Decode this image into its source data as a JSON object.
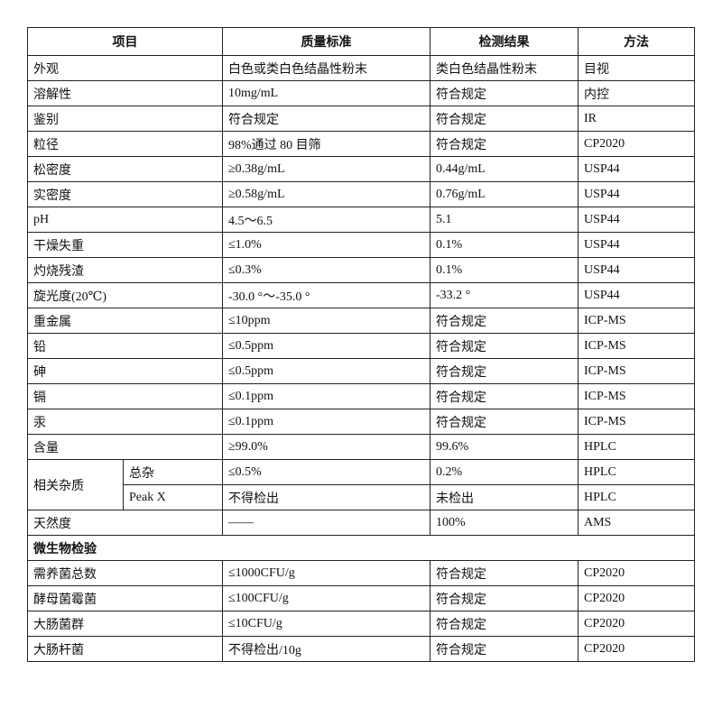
{
  "headers": [
    "项目",
    "质量标准",
    "检测结果",
    "方法"
  ],
  "rows": [
    [
      "外观",
      "白色或类白色结晶性粉末",
      "类白色结晶性粉末",
      "目视"
    ],
    [
      "溶解性",
      "10mg/mL",
      "符合规定",
      "内控"
    ],
    [
      "鉴别",
      "符合规定",
      "符合规定",
      "IR"
    ],
    [
      "粒径",
      "98%通过 80 目筛",
      "符合规定",
      "CP2020"
    ],
    [
      "松密度",
      "≥0.38g/mL",
      "0.44g/mL",
      "USP44"
    ],
    [
      "实密度",
      "≥0.58g/mL",
      "0.76g/mL",
      "USP44"
    ],
    [
      "pH",
      "4.5～6.5",
      "5.1",
      "USP44"
    ],
    [
      "干燥失重",
      "≤1.0%",
      "0.1%",
      "USP44"
    ],
    [
      "灼烧残渣",
      "≤0.3%",
      "0.1%",
      "USP44"
    ],
    [
      "旋光度(20℃)",
      "-30.0 °～-35.0 °",
      "-33.2 °",
      "USP44"
    ],
    [
      "重金属",
      "≤10ppm",
      "符合规定",
      "ICP-MS"
    ],
    [
      "铅",
      "≤0.5ppm",
      "符合规定",
      "ICP-MS"
    ],
    [
      "砷",
      "≤0.5ppm",
      "符合规定",
      "ICP-MS"
    ],
    [
      "镉",
      "≤0.1ppm",
      "符合规定",
      "ICP-MS"
    ],
    [
      "汞",
      "≤0.1ppm",
      "符合规定",
      "ICP-MS"
    ],
    [
      "含量",
      "≥99.0%",
      "99.6%",
      "HPLC"
    ]
  ],
  "impurities": {
    "label": "相关杂质",
    "sub": [
      [
        "总杂",
        "≤0.5%",
        "0.2%",
        "HPLC"
      ],
      [
        "Peak X",
        "不得检出",
        "未检出",
        "HPLC"
      ]
    ]
  },
  "natural": [
    "天然度",
    "——",
    "100%",
    "AMS"
  ],
  "micro_section": "微生物检验",
  "micro_rows": [
    [
      "需养菌总数",
      "≤1000CFU/g",
      "符合规定",
      "CP2020"
    ],
    [
      "酵母菌霉菌",
      "≤100CFU/g",
      "符合规定",
      "CP2020"
    ],
    [
      "大肠菌群",
      "≤10CFU/g",
      "符合规定",
      "CP2020"
    ],
    [
      "大肠杆菌",
      "不得检出/10g",
      "符合规定",
      "CP2020"
    ]
  ]
}
